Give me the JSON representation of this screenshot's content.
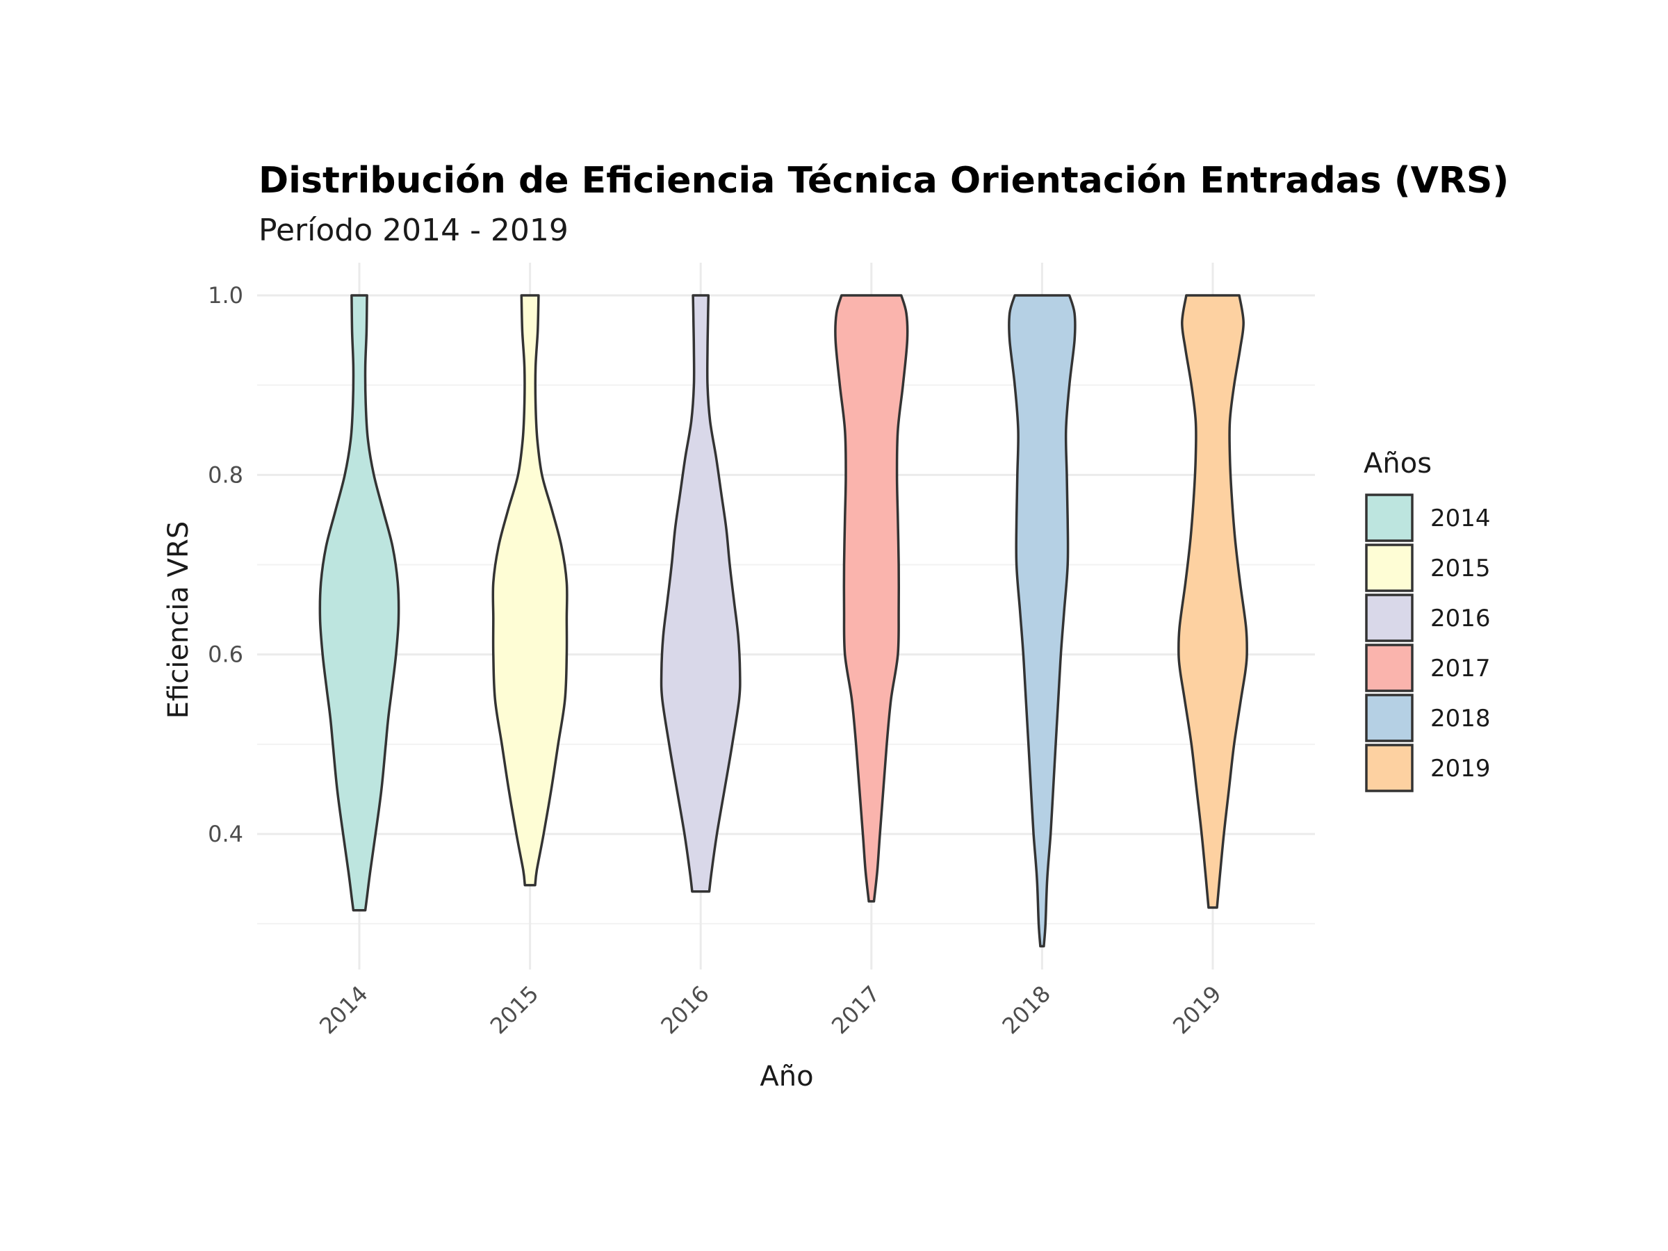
{
  "chart_data": {
    "type": "violin",
    "title": "Distribución de Eficiencia Técnica Orientación Entradas (VRS)",
    "subtitle": "Período 2014 - 2019",
    "xlabel": "Año",
    "ylabel": "Eficiencia VRS",
    "ylim": [
      0.25,
      1.04
    ],
    "yticks": [
      "0.4",
      "0.6",
      "0.8",
      "1.0"
    ],
    "categories": [
      "2014",
      "2015",
      "2016",
      "2017",
      "2018",
      "2019"
    ],
    "grid": true,
    "legend": {
      "title": "Años",
      "position": "right"
    },
    "colors": [
      "#bde5df",
      "#fefdd5",
      "#d9d8e9",
      "#fab4ad",
      "#b5d0e4",
      "#fdd1a1"
    ],
    "outline_color": "#333333",
    "series": [
      {
        "name": "2014",
        "min": 0.315,
        "max": 1.0,
        "profile": [
          [
            0.315,
            0.07
          ],
          [
            0.33,
            0.09
          ],
          [
            0.36,
            0.13
          ],
          [
            0.4,
            0.19
          ],
          [
            0.45,
            0.26
          ],
          [
            0.5,
            0.31
          ],
          [
            0.53,
            0.34
          ],
          [
            0.56,
            0.38
          ],
          [
            0.6,
            0.43
          ],
          [
            0.64,
            0.46
          ],
          [
            0.68,
            0.45
          ],
          [
            0.72,
            0.39
          ],
          [
            0.76,
            0.28
          ],
          [
            0.8,
            0.17
          ],
          [
            0.84,
            0.1
          ],
          [
            0.88,
            0.075
          ],
          [
            0.92,
            0.07
          ],
          [
            0.96,
            0.085
          ],
          [
            1.0,
            0.09
          ]
        ]
      },
      {
        "name": "2015",
        "min": 0.343,
        "max": 1.0,
        "profile": [
          [
            0.343,
            0.06
          ],
          [
            0.36,
            0.08
          ],
          [
            0.4,
            0.16
          ],
          [
            0.45,
            0.25
          ],
          [
            0.5,
            0.33
          ],
          [
            0.55,
            0.41
          ],
          [
            0.6,
            0.43
          ],
          [
            0.64,
            0.43
          ],
          [
            0.68,
            0.43
          ],
          [
            0.72,
            0.37
          ],
          [
            0.76,
            0.26
          ],
          [
            0.8,
            0.14
          ],
          [
            0.84,
            0.085
          ],
          [
            0.88,
            0.065
          ],
          [
            0.92,
            0.065
          ],
          [
            0.96,
            0.09
          ],
          [
            1.0,
            0.1
          ]
        ]
      },
      {
        "name": "2016",
        "min": 0.336,
        "max": 1.0,
        "profile": [
          [
            0.336,
            0.1
          ],
          [
            0.36,
            0.13
          ],
          [
            0.4,
            0.19
          ],
          [
            0.45,
            0.28
          ],
          [
            0.5,
            0.37
          ],
          [
            0.55,
            0.45
          ],
          [
            0.58,
            0.46
          ],
          [
            0.62,
            0.44
          ],
          [
            0.66,
            0.39
          ],
          [
            0.7,
            0.34
          ],
          [
            0.74,
            0.3
          ],
          [
            0.78,
            0.24
          ],
          [
            0.82,
            0.18
          ],
          [
            0.86,
            0.11
          ],
          [
            0.9,
            0.08
          ],
          [
            0.94,
            0.08
          ],
          [
            0.97,
            0.085
          ],
          [
            1.0,
            0.09
          ]
        ]
      },
      {
        "name": "2017",
        "min": 0.325,
        "max": 1.0,
        "profile": [
          [
            0.325,
            0.03
          ],
          [
            0.36,
            0.07
          ],
          [
            0.4,
            0.1
          ],
          [
            0.45,
            0.14
          ],
          [
            0.5,
            0.18
          ],
          [
            0.55,
            0.23
          ],
          [
            0.6,
            0.31
          ],
          [
            0.65,
            0.32
          ],
          [
            0.7,
            0.32
          ],
          [
            0.75,
            0.31
          ],
          [
            0.8,
            0.3
          ],
          [
            0.85,
            0.31
          ],
          [
            0.9,
            0.37
          ],
          [
            0.95,
            0.42
          ],
          [
            0.98,
            0.41
          ],
          [
            1.0,
            0.35
          ]
        ]
      },
      {
        "name": "2018",
        "min": 0.275,
        "max": 1.0,
        "profile": [
          [
            0.275,
            0.02
          ],
          [
            0.3,
            0.04
          ],
          [
            0.35,
            0.06
          ],
          [
            0.4,
            0.1
          ],
          [
            0.45,
            0.13
          ],
          [
            0.5,
            0.16
          ],
          [
            0.55,
            0.19
          ],
          [
            0.6,
            0.22
          ],
          [
            0.65,
            0.26
          ],
          [
            0.7,
            0.3
          ],
          [
            0.75,
            0.3
          ],
          [
            0.8,
            0.29
          ],
          [
            0.85,
            0.28
          ],
          [
            0.9,
            0.32
          ],
          [
            0.95,
            0.38
          ],
          [
            0.98,
            0.38
          ],
          [
            1.0,
            0.32
          ]
        ]
      },
      {
        "name": "2019",
        "min": 0.318,
        "max": 1.0,
        "profile": [
          [
            0.318,
            0.05
          ],
          [
            0.35,
            0.08
          ],
          [
            0.4,
            0.13
          ],
          [
            0.45,
            0.19
          ],
          [
            0.5,
            0.25
          ],
          [
            0.55,
            0.33
          ],
          [
            0.58,
            0.38
          ],
          [
            0.6,
            0.4
          ],
          [
            0.63,
            0.39
          ],
          [
            0.68,
            0.32
          ],
          [
            0.73,
            0.26
          ],
          [
            0.78,
            0.22
          ],
          [
            0.82,
            0.2
          ],
          [
            0.86,
            0.2
          ],
          [
            0.9,
            0.25
          ],
          [
            0.94,
            0.32
          ],
          [
            0.97,
            0.36
          ],
          [
            1.0,
            0.31
          ]
        ]
      }
    ]
  }
}
